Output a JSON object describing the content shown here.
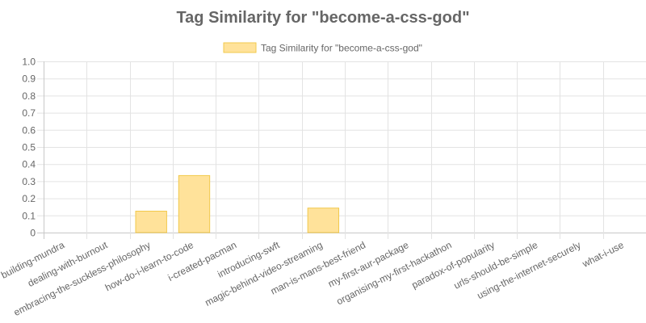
{
  "chart_data": {
    "type": "bar",
    "title": "Tag Similarity for \"become-a-css-god\"",
    "legend": {
      "position": "top",
      "entries": [
        "Tag Similarity for \"become-a-css-god\""
      ]
    },
    "categories": [
      "building-mundra",
      "dealing-with-burnout",
      "embracing-the-suckless-philosophy",
      "how-do-i-learn-to-code",
      "i-created-pacman",
      "introducing-swft",
      "magic-behind-video-streaming",
      "man-is-mans-best-friend",
      "my-first-aur-package",
      "organising-my-first-hackathon",
      "paradox-of-popularity",
      "urls-should-be-simple",
      "using-the-internet-securely",
      "what-i-use"
    ],
    "series": [
      {
        "name": "Tag Similarity for \"become-a-css-god\"",
        "values": [
          0,
          0,
          0.125,
          0.333,
          0,
          0,
          0.143,
          0,
          0,
          0,
          0,
          0,
          0,
          0
        ]
      }
    ],
    "ylim": [
      0,
      1.0
    ],
    "yticks": [
      "0",
      "0.1",
      "0.2",
      "0.3",
      "0.4",
      "0.5",
      "0.6",
      "0.7",
      "0.8",
      "0.9",
      "1.0"
    ],
    "ytick_values": [
      0,
      0.1,
      0.2,
      0.3,
      0.4,
      0.5,
      0.6,
      0.7,
      0.8,
      0.9,
      1.0
    ],
    "grid": true,
    "xlabel": "",
    "ylabel": "",
    "colors": {
      "bar_fill": "#ffe29a",
      "bar_stroke": "#f2c94c",
      "grid": "#e3e3e3",
      "axis": "#c8c8c8",
      "text": "#666666",
      "title": "#666666"
    }
  }
}
